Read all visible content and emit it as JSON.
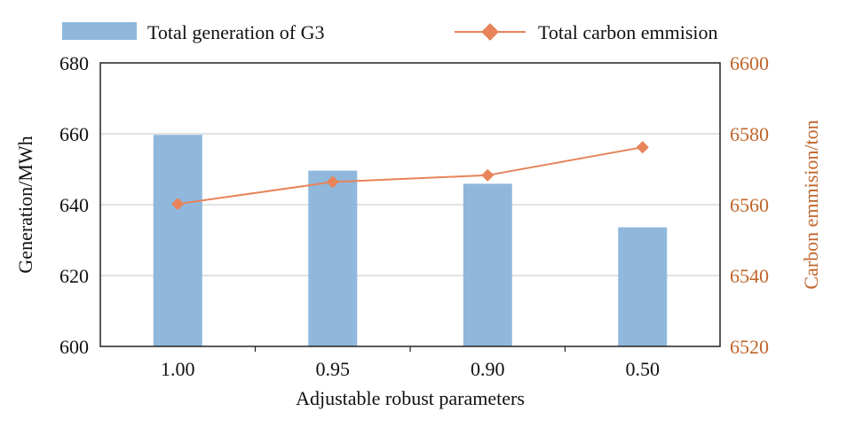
{
  "chart_data": {
    "type": "bar+line",
    "categories": [
      "1.00",
      "0.95",
      "0.90",
      "0.50"
    ],
    "xlabel": "Adjustable robust parameters",
    "ylabel_left": "Generation/MWh",
    "ylabel_right": "Carbon emmision/ton",
    "ylim_left": [
      600,
      680
    ],
    "ylim_right": [
      6520,
      6600
    ],
    "yticks_left": [
      "600",
      "620",
      "640",
      "660",
      "680"
    ],
    "yticks_right": [
      "6520",
      "6540",
      "6560",
      "6580",
      "6600"
    ],
    "grid": true,
    "legend_position": "top",
    "series": [
      {
        "name": "Total generation of G3",
        "type": "bar",
        "axis": "left",
        "color": "#8fb8dc",
        "values": [
          659.7,
          649.6,
          645.9,
          633.6
        ]
      },
      {
        "name": "Total carbon emmision",
        "type": "line",
        "axis": "right",
        "color": "#e8835a",
        "marker": "diamond",
        "values": [
          6560.2,
          6566.4,
          6568.3,
          6576.2
        ]
      }
    ]
  }
}
